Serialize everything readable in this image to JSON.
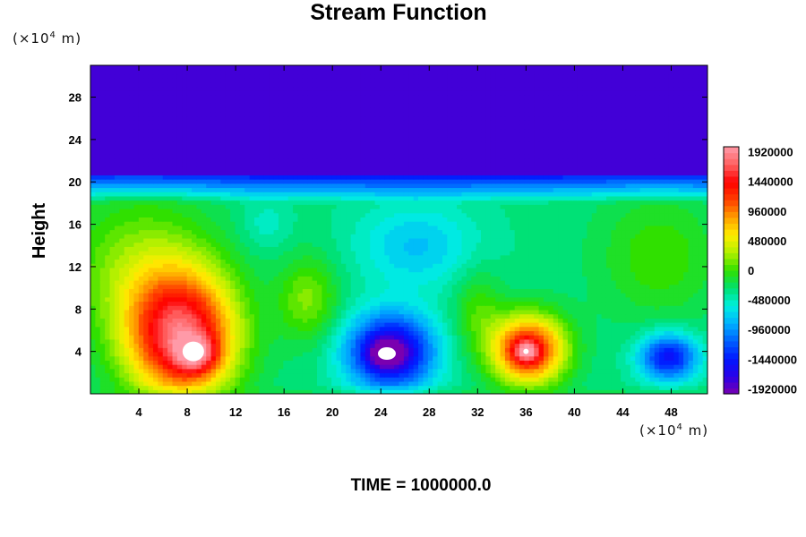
{
  "chart_data": {
    "type": "heatmap",
    "title": "Stream Function",
    "ylabel": "Height",
    "xunit": {
      "pre": "(×10",
      "exp": "4",
      "post": " m)"
    },
    "yunit": {
      "pre": "(×10",
      "exp": "4",
      "post": " m)"
    },
    "xticks": [
      4,
      8,
      12,
      16,
      20,
      24,
      28,
      32,
      36,
      40,
      44,
      48
    ],
    "yticks": [
      4,
      8,
      12,
      16,
      20,
      24,
      28
    ],
    "xlim": [
      0,
      51
    ],
    "ylim": [
      0,
      31
    ],
    "colorbar": {
      "min": -2000000,
      "max": 2000000,
      "labels": [
        1920000,
        1440000,
        960000,
        480000,
        0,
        -480000,
        -960000,
        -1440000,
        -1920000
      ]
    },
    "features": [
      {
        "kind": "max",
        "x": 8.5,
        "y": 4,
        "value": 2000000
      },
      {
        "kind": "min",
        "x": 24.5,
        "y": 3.8,
        "value": -2000000
      },
      {
        "kind": "max",
        "x": 36,
        "y": 4,
        "value": 2000000
      },
      {
        "kind": "min",
        "x": 47.8,
        "y": 3.5,
        "value": -1450000
      }
    ],
    "footer": "TIME = 1000000.0"
  },
  "colors": {
    "palette": [
      "#7a00b0",
      "#2a00e8",
      "#0018ff",
      "#0060ff",
      "#00b0ff",
      "#00f0e0",
      "#00e070",
      "#30e000",
      "#b0f000",
      "#ffee00",
      "#ffa000",
      "#ff4000",
      "#ff0000",
      "#ff6060",
      "#ff9aa8"
    ]
  }
}
